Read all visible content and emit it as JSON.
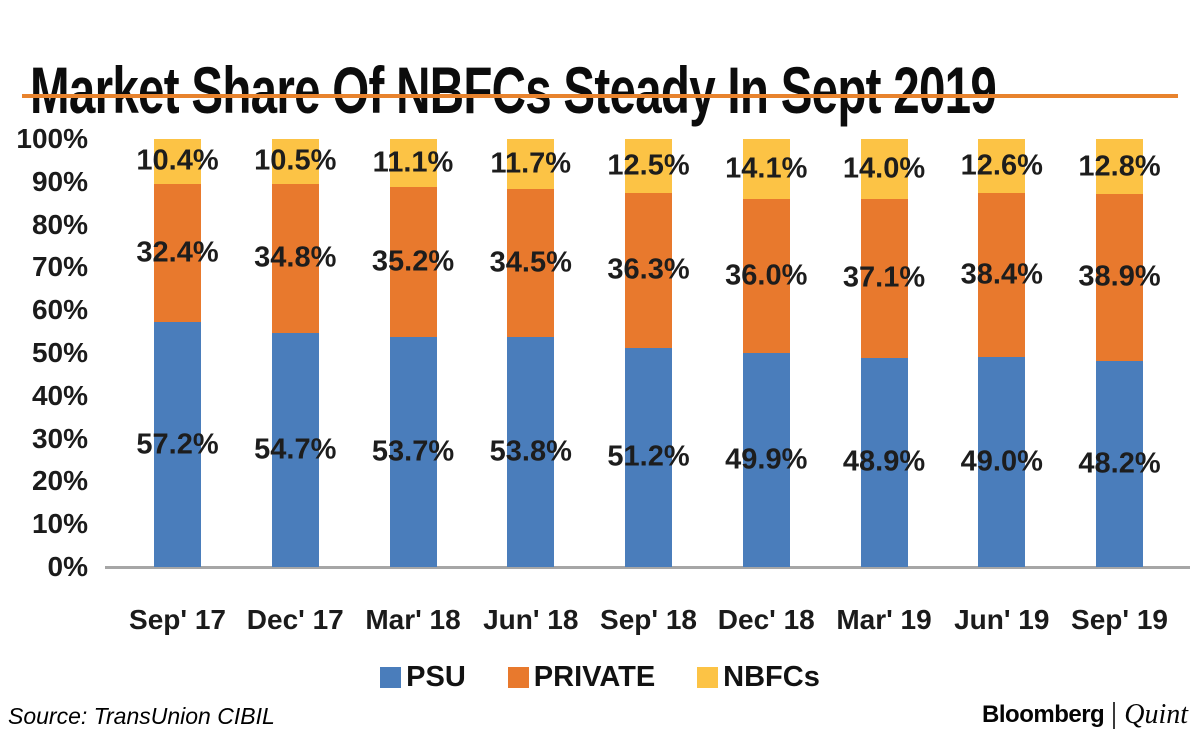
{
  "title": "Market Share Of NBFCs Steady In Sept 2019",
  "source_note": "Source: TransUnion CIBIL",
  "brand": {
    "name": "Bloomberg",
    "sub": "Quint"
  },
  "colors": {
    "psu_blue": "#4a7dbb",
    "private_orange": "#e8792d",
    "nbfc_yellow": "#fcc345",
    "title_rule_orange": "#e8832d",
    "axis_gray": "#a6a6a6"
  },
  "chart_data": {
    "type": "bar",
    "stacked": true,
    "title": "Market Share Of NBFCs Steady In Sept 2019",
    "categories": [
      "Sep' 17",
      "Dec' 17",
      "Mar' 18",
      "Jun' 18",
      "Sep' 18",
      "Dec' 18",
      "Mar' 19",
      "Jun' 19",
      "Sep' 19"
    ],
    "series": [
      {
        "name": "PSU",
        "color": "#4a7dbb",
        "values": [
          57.2,
          54.7,
          53.7,
          53.8,
          51.2,
          49.9,
          48.9,
          49.0,
          48.2
        ]
      },
      {
        "name": "PRIVATE",
        "color": "#e8792d",
        "values": [
          32.4,
          34.8,
          35.2,
          34.5,
          36.3,
          36.0,
          37.1,
          38.4,
          38.9
        ]
      },
      {
        "name": "NBFCs",
        "color": "#fcc345",
        "values": [
          10.4,
          10.5,
          11.1,
          11.7,
          12.5,
          14.1,
          14.0,
          12.6,
          12.8
        ]
      }
    ],
    "y_ticks": [
      "0%",
      "10%",
      "20%",
      "30%",
      "40%",
      "50%",
      "60%",
      "70%",
      "80%",
      "90%",
      "100%"
    ],
    "ylim": [
      0,
      100
    ],
    "xlabel": "",
    "ylabel": "",
    "grid": false,
    "legend_position": "bottom",
    "data_labels": "each segment labeled with one-decimal percent, centered in segment"
  }
}
